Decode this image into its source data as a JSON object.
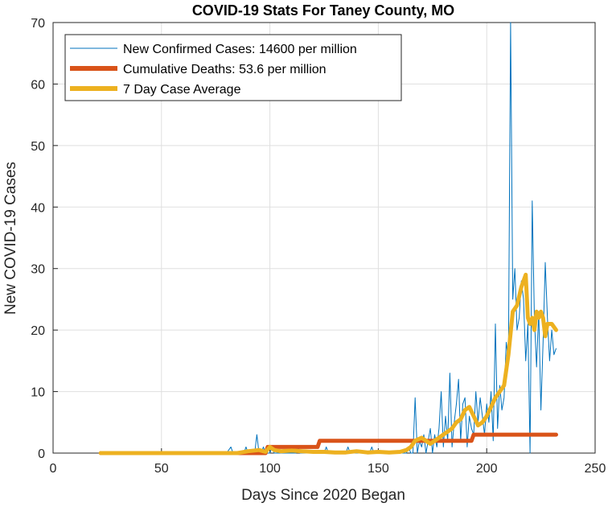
{
  "chart_data": {
    "type": "line",
    "title": "COVID-19 Stats For Taney County, MO",
    "xlabel": "Days Since 2020 Began",
    "ylabel": "New COVID-19 Cases",
    "xlim": [
      0,
      250
    ],
    "ylim": [
      0,
      70
    ],
    "xticks": [
      0,
      50,
      100,
      150,
      200,
      250
    ],
    "yticks": [
      0,
      10,
      20,
      30,
      40,
      50,
      60,
      70
    ],
    "grid": true,
    "legend_position": "top-left",
    "series": [
      {
        "name": "New Confirmed Cases: 14600 per million",
        "color": "#0072BD",
        "line_style": "thin",
        "x": [
          22,
          80,
          82,
          83,
          85,
          86,
          87,
          88,
          89,
          90,
          91,
          92,
          93,
          94,
          95,
          96,
          97,
          98,
          99,
          100,
          101,
          102,
          103,
          104,
          105,
          106,
          107,
          108,
          109,
          110,
          111,
          112,
          113,
          114,
          115,
          116,
          117,
          118,
          119,
          120,
          121,
          122,
          123,
          124,
          125,
          126,
          127,
          128,
          129,
          130,
          131,
          132,
          133,
          134,
          135,
          136,
          137,
          138,
          139,
          140,
          141,
          142,
          143,
          144,
          145,
          146,
          147,
          148,
          149,
          150,
          151,
          152,
          153,
          154,
          155,
          156,
          157,
          158,
          159,
          160,
          161,
          162,
          163,
          164,
          165,
          166,
          167,
          168,
          169,
          170,
          171,
          172,
          173,
          174,
          175,
          176,
          177,
          178,
          179,
          180,
          181,
          182,
          183,
          184,
          185,
          186,
          187,
          188,
          189,
          190,
          191,
          192,
          193,
          194,
          195,
          196,
          197,
          198,
          199,
          200,
          201,
          202,
          203,
          204,
          205,
          206,
          207,
          208,
          209,
          210,
          211,
          212,
          213,
          214,
          215,
          216,
          217,
          218,
          219,
          220,
          221,
          222,
          223,
          224,
          225,
          226,
          227,
          228,
          229,
          230,
          231,
          232
        ],
        "y": [
          0,
          0,
          1,
          0,
          0,
          0,
          0,
          0,
          1,
          0,
          0,
          0,
          0,
          3,
          0,
          0,
          1,
          0,
          0,
          0,
          1,
          0,
          0,
          0,
          0,
          0,
          0,
          0,
          0,
          0,
          0,
          0,
          1,
          0,
          0,
          0,
          0,
          0,
          0,
          0,
          0,
          0,
          0,
          0,
          0,
          1,
          0,
          0,
          0,
          0,
          0,
          0,
          0,
          0,
          0,
          1,
          0,
          0,
          0,
          0,
          0,
          0,
          0,
          0,
          0,
          0,
          1,
          0,
          0,
          0,
          0,
          0,
          0,
          0,
          0,
          0,
          0,
          0,
          0,
          0,
          0,
          0,
          0,
          1,
          0,
          0,
          9,
          0,
          2,
          1,
          3,
          0,
          2,
          4,
          0,
          3,
          1,
          4,
          10,
          1,
          6,
          2,
          13,
          1,
          5,
          8,
          12,
          2,
          8,
          9,
          1,
          6,
          4,
          3,
          10,
          5,
          9,
          6,
          3,
          8,
          5,
          10,
          2,
          21,
          4,
          11,
          7,
          9,
          18,
          15,
          70,
          25,
          30,
          20,
          22,
          28,
          25,
          15,
          21,
          0,
          41,
          22,
          14,
          23,
          7,
          18,
          31,
          22,
          15,
          20,
          16,
          17
        ]
      },
      {
        "name": "Cumulative Deaths: 53.6 per million",
        "color": "#D95319",
        "line_style": "thick",
        "x": [
          22,
          98,
          99,
          122,
          123,
          193,
          194,
          232
        ],
        "y": [
          0,
          0,
          1,
          1,
          2,
          2,
          3,
          3
        ]
      },
      {
        "name": "7 Day Case Average",
        "color": "#EDB120",
        "line_style": "thick",
        "x": [
          22,
          85,
          90,
          95,
          98,
          100,
          102,
          105,
          110,
          115,
          120,
          125,
          130,
          135,
          140,
          145,
          150,
          155,
          160,
          163,
          165,
          167,
          170,
          172,
          174,
          176,
          178,
          180,
          182,
          184,
          186,
          188,
          190,
          192,
          194,
          196,
          198,
          200,
          202,
          204,
          206,
          208,
          210,
          212,
          214,
          216,
          218,
          219,
          220,
          221,
          222,
          223,
          224,
          225,
          226,
          227,
          228,
          230,
          232
        ],
        "y": [
          0,
          0,
          0.3,
          0.5,
          0.2,
          1,
          0.5,
          0.3,
          0.4,
          0.3,
          0.2,
          0.2,
          0.1,
          0.1,
          0.3,
          0.1,
          0.2,
          0.1,
          0.2,
          0.5,
          1,
          2,
          2.5,
          2,
          1.5,
          2,
          2.5,
          3,
          3.5,
          4,
          5,
          5.5,
          7,
          7.5,
          6,
          4.5,
          5,
          6,
          7.5,
          9,
          10,
          11,
          16,
          23,
          24,
          27,
          29,
          22,
          21,
          22,
          20,
          23,
          22,
          23,
          22,
          19,
          21,
          21,
          20
        ]
      }
    ]
  }
}
